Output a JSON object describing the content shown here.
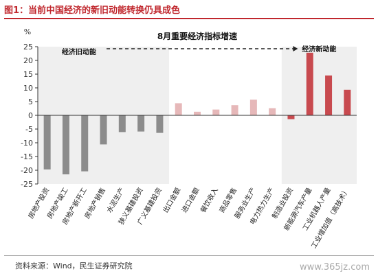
{
  "figure_title": "图1：当前中国经济的新旧动能转换仍具成色",
  "source_note": "资料来源：Wind，民生证券研究院",
  "watermark": "www.365jz.com",
  "chart_data": {
    "type": "bar",
    "title": "8月重要经济指标增速",
    "ylabel": "%",
    "ylim": [
      -25,
      25
    ],
    "yticks": [
      -25,
      -20,
      -15,
      -10,
      -5,
      0,
      5,
      10,
      15,
      20,
      25
    ],
    "grid": false,
    "categories": [
      "房地产投资",
      "房地产竣工",
      "房地产新开工",
      "房地产销售",
      "水泥生产",
      "狭义基建投资",
      "广义基建投资",
      "出口金额",
      "进口金额",
      "餐饮收入",
      "商品零售",
      "服务业生产",
      "电力热力生产",
      "制造业投资",
      "新能源汽车产量",
      "工业机器人产量",
      "工业增加值（高技术）"
    ],
    "values": [
      -19.7,
      -21.5,
      -20.4,
      -10.6,
      -6.1,
      -5.9,
      -6.4,
      4.4,
      1.3,
      2.1,
      3.7,
      5.7,
      2.6,
      -1.4,
      22.8,
      14.5,
      9.3
    ],
    "groups": [
      {
        "label": "经济旧动能",
        "start": 0,
        "end": 6,
        "color": "#8c8c8c"
      },
      {
        "label": "",
        "start": 7,
        "end": 12,
        "color": "#e6b8b9"
      },
      {
        "label": "经济新动能",
        "start": 13,
        "end": 16,
        "color": "#c84a4f"
      }
    ],
    "colors": {
      "old": "#8c8c8c",
      "mid": "#e6b8b9",
      "new": "#c84a4f",
      "panel": "#efefef",
      "axis": "#333333"
    }
  }
}
